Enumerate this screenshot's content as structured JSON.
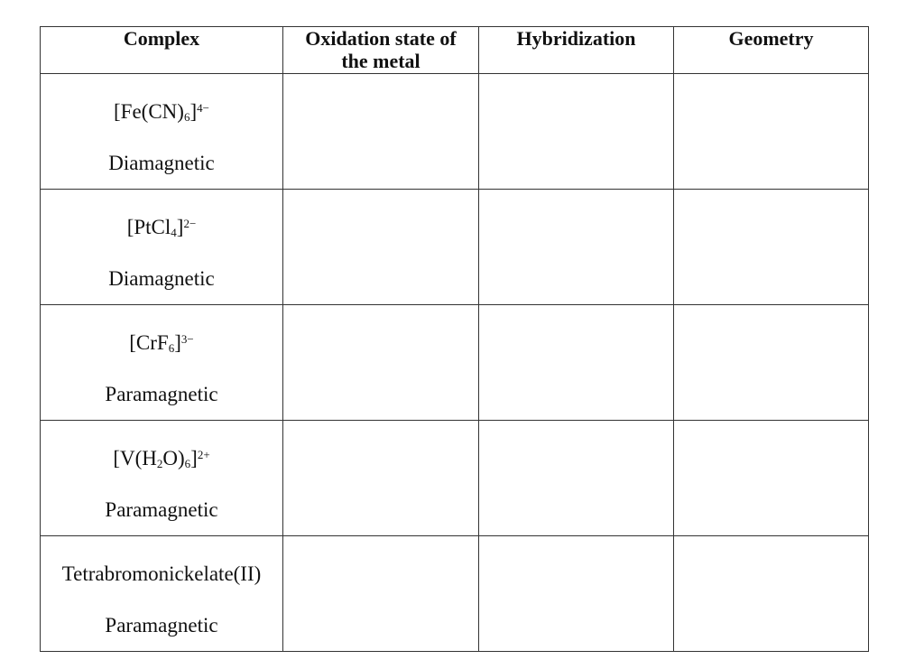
{
  "table": {
    "headers": [
      "Complex",
      "Oxidation state of the metal",
      "Hybridization",
      "Geometry"
    ],
    "header_lines": {
      "oxidation": [
        "Oxidation state of",
        "the metal"
      ]
    },
    "rows": [
      {
        "formula": [
          {
            "t": "[Fe(CN)"
          },
          {
            "t": "6",
            "sub": true
          },
          {
            "t": "]"
          },
          {
            "t": "4−",
            "sup": true
          }
        ],
        "magnetism": "Diamagnetic",
        "oxidation_state": "",
        "hybridization": "",
        "geometry": ""
      },
      {
        "formula": [
          {
            "t": "[PtCl"
          },
          {
            "t": "4",
            "sub": true
          },
          {
            "t": "]"
          },
          {
            "t": "2−",
            "sup": true
          }
        ],
        "magnetism": "Diamagnetic",
        "oxidation_state": "",
        "hybridization": "",
        "geometry": ""
      },
      {
        "formula": [
          {
            "t": "[CrF"
          },
          {
            "t": "6",
            "sub": true
          },
          {
            "t": "]"
          },
          {
            "t": "3−",
            "sup": true
          }
        ],
        "magnetism": "Paramagnetic",
        "oxidation_state": "",
        "hybridization": "",
        "geometry": ""
      },
      {
        "formula": [
          {
            "t": "[V(H"
          },
          {
            "t": "2",
            "sub": true
          },
          {
            "t": "O)"
          },
          {
            "t": "6",
            "sub": true
          },
          {
            "t": "]"
          },
          {
            "t": "2+",
            "sup": true
          }
        ],
        "magnetism": "Paramagnetic",
        "oxidation_state": "",
        "hybridization": "",
        "geometry": ""
      },
      {
        "formula": [
          {
            "t": "Tetrabromonickelate(II)"
          }
        ],
        "magnetism": "Paramagnetic",
        "oxidation_state": "",
        "hybridization": "",
        "geometry": ""
      }
    ]
  }
}
